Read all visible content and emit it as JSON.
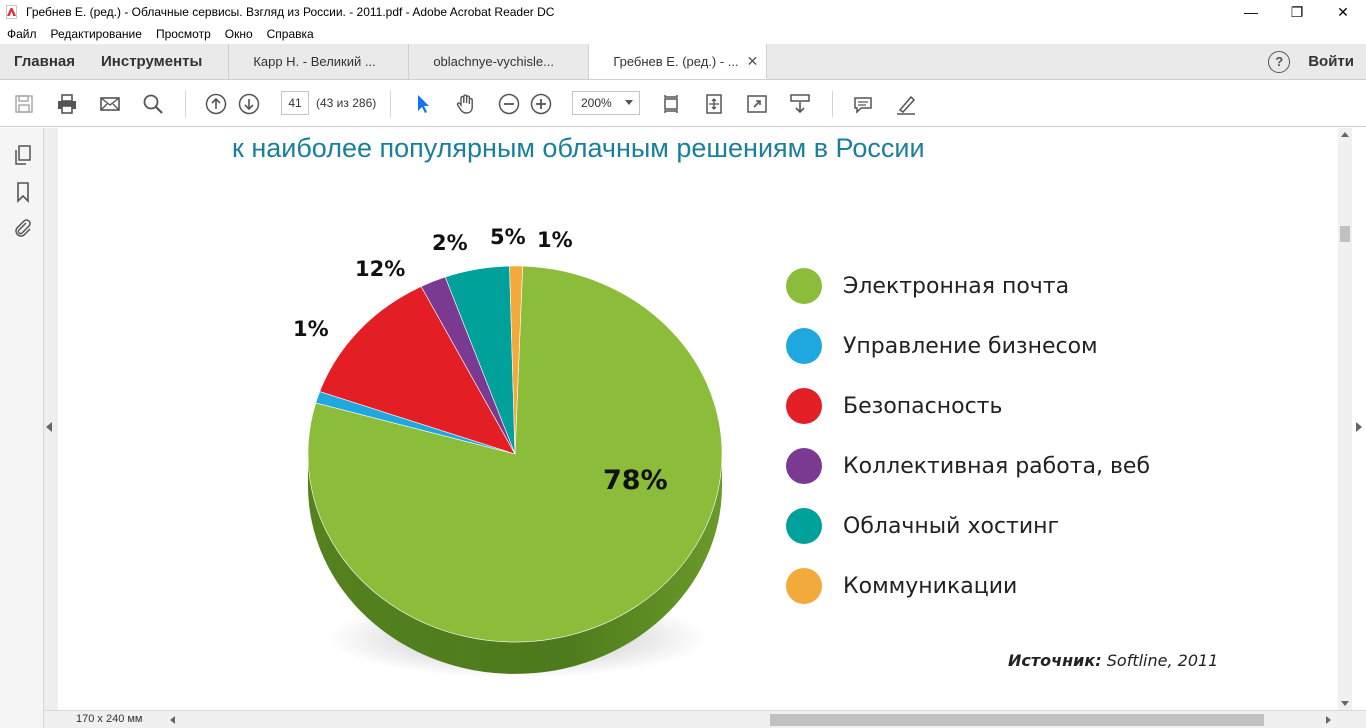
{
  "window": {
    "title": "Гребнев Е. (ред.) - Облачные  сервисы.  Взгляд  из  России. - 2011.pdf - Adobe Acrobat Reader DC",
    "minimize": "—",
    "restore": "❐",
    "close": "✕"
  },
  "menu": {
    "items": [
      "Файл",
      "Редактирование",
      "Просмотр",
      "Окно",
      "Справка"
    ]
  },
  "tabs": {
    "home": "Главная",
    "tools": "Инструменты",
    "documents": [
      {
        "label": "Карр Н. - Великий ..."
      },
      {
        "label": "oblachnye-vychisle..."
      },
      {
        "label": "Гребнев Е. (ред.) - ..."
      }
    ],
    "close_glyph": "✕",
    "help": "?",
    "login": "Войти"
  },
  "toolbar": {
    "page_number": "41",
    "page_count": "(43 из 286)",
    "zoom": "200%"
  },
  "document": {
    "heading": "к наиболее популярным облачным решениям в России",
    "source_label": "Источник:",
    "source_value": " Softline, 2011"
  },
  "status": {
    "page_size": "170 x 240 мм"
  },
  "chart_data": {
    "type": "pie",
    "title": "",
    "categories": [
      "Электронная почта",
      "Управление бизнесом",
      "Безопасность",
      "Коллективная работа, веб",
      "Облачный хостинг",
      "Коммуникации"
    ],
    "values": [
      78,
      1,
      12,
      2,
      5,
      1
    ],
    "value_labels": [
      "78%",
      "1%",
      "12%",
      "2%",
      "5%",
      "1%"
    ],
    "colors": [
      "#8bbd3b",
      "#1fa8e0",
      "#e31e25",
      "#7b3a91",
      "#00a19a",
      "#f4a93b"
    ],
    "legend_position": "right"
  }
}
